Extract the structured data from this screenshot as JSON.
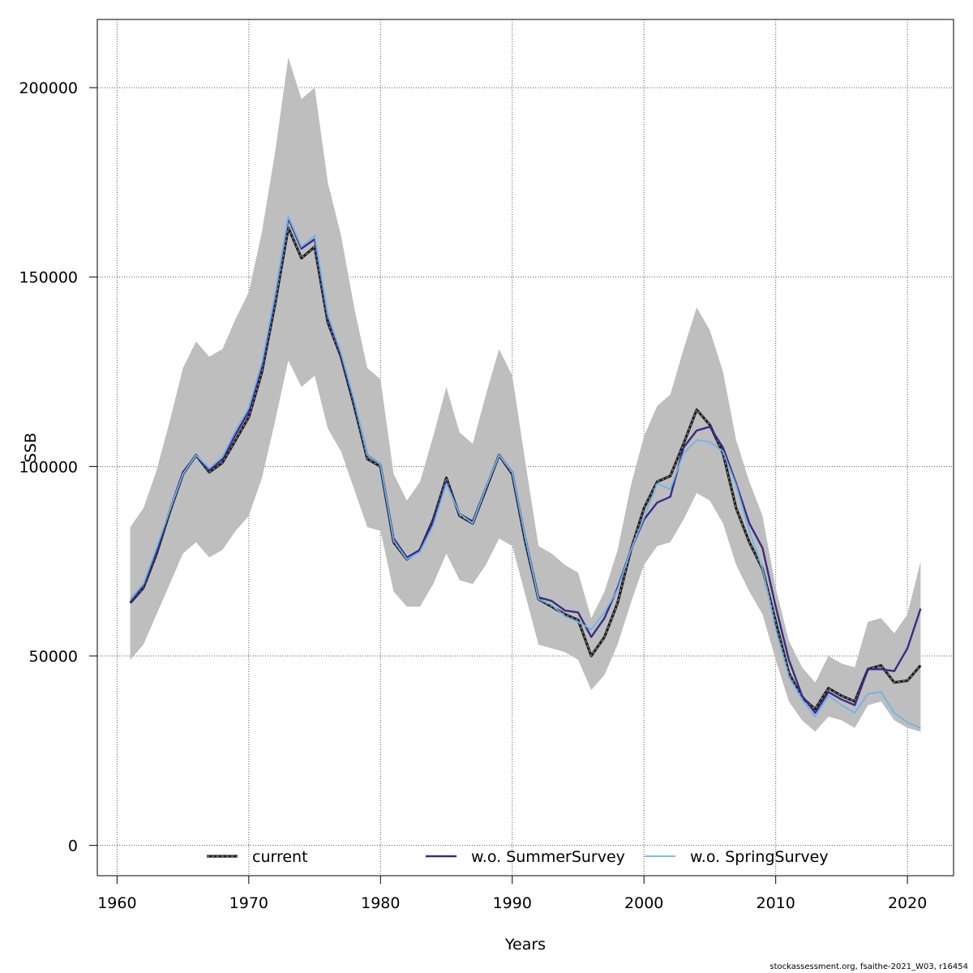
{
  "chart_data": {
    "type": "line",
    "title": "",
    "xlabel": "Years",
    "ylabel": "SSB",
    "xlim": [
      1958.5,
      2023.5
    ],
    "ylim": [
      -8000,
      218000
    ],
    "xticks": [
      1960,
      1970,
      1980,
      1990,
      2000,
      2010,
      2020
    ],
    "yticks": [
      0,
      50000,
      100000,
      150000,
      200000
    ],
    "grid": true,
    "legend_position": "bottom",
    "x": [
      1961,
      1962,
      1963,
      1964,
      1965,
      1966,
      1967,
      1968,
      1969,
      1970,
      1971,
      1972,
      1973,
      1974,
      1975,
      1976,
      1977,
      1978,
      1979,
      1980,
      1981,
      1982,
      1983,
      1984,
      1985,
      1986,
      1987,
      1988,
      1989,
      1990,
      1991,
      1992,
      1993,
      1994,
      1995,
      1996,
      1997,
      1998,
      1999,
      2000,
      2001,
      2002,
      2003,
      2004,
      2005,
      2006,
      2007,
      2008,
      2009,
      2010,
      2011,
      2012,
      2013,
      2014,
      2015,
      2016,
      2017,
      2018,
      2019,
      2020,
      2021
    ],
    "band": {
      "upper": [
        84000,
        89000,
        99000,
        112000,
        126000,
        133000,
        129000,
        131000,
        139000,
        146000,
        162000,
        183000,
        208000,
        197000,
        200000,
        175000,
        161000,
        142000,
        126000,
        123000,
        98000,
        91000,
        96000,
        108000,
        121000,
        109000,
        106000,
        119000,
        131000,
        124000,
        101000,
        79000,
        77000,
        74000,
        72000,
        60000,
        67000,
        78000,
        95000,
        108000,
        116000,
        119000,
        131000,
        142000,
        136000,
        125000,
        107000,
        96000,
        87000,
        68000,
        54000,
        47000,
        43000,
        50000,
        48000,
        47000,
        59000,
        60000,
        56000,
        61000,
        75000
      ],
      "lower": [
        49000,
        53000,
        61000,
        69000,
        77000,
        80000,
        76000,
        78000,
        83000,
        87000,
        97000,
        112000,
        128000,
        121000,
        124000,
        110000,
        104000,
        94000,
        84000,
        83000,
        67000,
        63000,
        63000,
        69000,
        77000,
        70000,
        69000,
        74000,
        81000,
        79000,
        66000,
        53000,
        52000,
        51000,
        49000,
        41000,
        45000,
        53000,
        64000,
        74000,
        79000,
        80000,
        86000,
        93000,
        91000,
        85000,
        74000,
        67000,
        61000,
        49000,
        38000,
        33000,
        30000,
        34000,
        33000,
        31000,
        37000,
        38000,
        33000,
        31000,
        30000
      ]
    },
    "series": [
      {
        "name": "current",
        "color": "#2b2b2b",
        "values": [
          64000,
          68000,
          77000,
          88000,
          98000,
          103000,
          98500,
          101000,
          107000,
          113000,
          125000,
          143000,
          163000,
          155000,
          158000,
          138000,
          129000,
          116000,
          102000,
          100000,
          80000,
          75500,
          78000,
          86000,
          97000,
          87000,
          85000,
          94000,
          103000,
          98000,
          80000,
          65000,
          63000,
          61000,
          59500,
          50000,
          55000,
          64000,
          78000,
          89000,
          96000,
          97500,
          106000,
          115000,
          111000,
          103500,
          89000,
          80000,
          73000,
          59000,
          45500,
          39000,
          36000,
          41500,
          39500,
          38000,
          46500,
          47500,
          43000,
          43500,
          47500
        ]
      },
      {
        "name": "w.o. SummerSurvey",
        "color": "#3a2a8c",
        "values": [
          64000,
          68500,
          77500,
          88500,
          98500,
          103000,
          99000,
          102000,
          108500,
          114500,
          126500,
          145000,
          165500,
          157500,
          160000,
          139500,
          129500,
          117000,
          103000,
          100500,
          81000,
          76000,
          78000,
          85500,
          96000,
          87500,
          85500,
          94500,
          103000,
          98500,
          81000,
          65500,
          64500,
          62000,
          61500,
          55000,
          60000,
          68000,
          78000,
          86000,
          90500,
          92000,
          105000,
          109500,
          110500,
          105000,
          95500,
          85000,
          78500,
          63000,
          49000,
          39500,
          35000,
          40500,
          38500,
          37000,
          46500,
          46500,
          46000,
          52000,
          62500
        ]
      },
      {
        "name": "w.o. SpringSurvey",
        "color": "#6bb6e8",
        "values": [
          65000,
          69000,
          78500,
          88500,
          98000,
          103000,
          99500,
          102500,
          109500,
          115500,
          127500,
          145500,
          166000,
          158000,
          161000,
          140000,
          130000,
          117500,
          103000,
          100500,
          80500,
          75500,
          77500,
          84500,
          95500,
          87500,
          85000,
          94500,
          103000,
          98500,
          81000,
          65000,
          63500,
          60500,
          59000,
          57000,
          61500,
          67500,
          78000,
          86500,
          95500,
          94000,
          103500,
          107000,
          106500,
          104000,
          95000,
          83000,
          73000,
          57000,
          44500,
          38500,
          34000,
          39500,
          37000,
          35000,
          40000,
          40500,
          35000,
          32500,
          31000
        ]
      }
    ]
  },
  "footer": "stockassessment.org, fsaithe-2021_W03, r16454"
}
